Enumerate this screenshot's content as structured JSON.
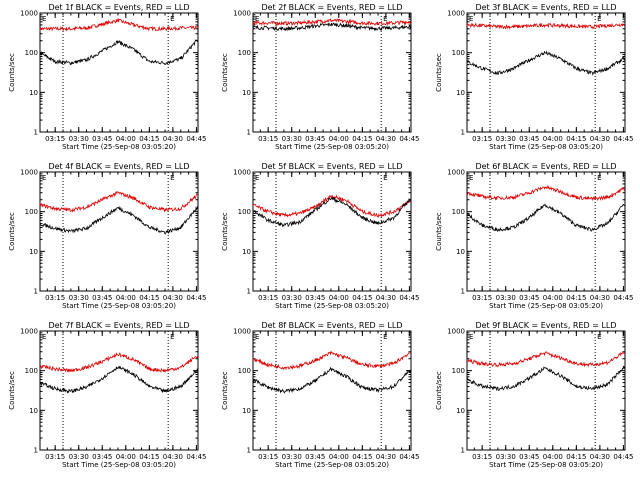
{
  "colors": {
    "events": "#000000",
    "lld": "#e00000",
    "axis": "#000000"
  },
  "shared": {
    "xlabel": "Start Time (25-Sep-08 03:05:20)",
    "ylabel": "Counts/sec",
    "x_ticks": [
      "03:15",
      "03:30",
      "03:45",
      "04:00",
      "04:15",
      "04:30",
      "04:45"
    ],
    "y_ticks": [
      "1",
      "10",
      "100",
      "1000"
    ],
    "yscale": "log",
    "ylim": [
      1,
      1000
    ],
    "xlim": [
      "03:05:20",
      "04:46:00"
    ],
    "vlines": [
      "03:20:00",
      "04:27:00"
    ],
    "marker_label": "E"
  },
  "chart_data": [
    {
      "type": "line",
      "title": "Det 1f BLACK = Events, RED = LLD",
      "x": [
        "03:05",
        "03:15",
        "03:25",
        "03:35",
        "03:45",
        "03:55",
        "04:05",
        "04:15",
        "04:25",
        "04:35",
        "04:45"
      ],
      "series": [
        {
          "values": [
            400,
            400,
            400,
            420,
            520,
            650,
            500,
            400,
            400,
            420,
            420
          ]
        },
        {
          "values": [
            100,
            60,
            55,
            65,
            110,
            190,
            120,
            60,
            55,
            70,
            200
          ]
        }
      ]
    },
    {
      "type": "line",
      "title": "Det 2f BLACK = Events, RED = LLD",
      "x": [
        "03:05",
        "03:15",
        "03:25",
        "03:35",
        "03:45",
        "03:55",
        "04:05",
        "04:15",
        "04:25",
        "04:35",
        "04:45"
      ],
      "series": [
        {
          "values": [
            560,
            560,
            550,
            560,
            600,
            650,
            610,
            560,
            550,
            560,
            600
          ]
        },
        {
          "values": [
            430,
            420,
            400,
            420,
            470,
            520,
            480,
            420,
            410,
            420,
            450
          ]
        }
      ]
    },
    {
      "type": "line",
      "title": "Det 3f BLACK = Events, RED = LLD",
      "x": [
        "03:05",
        "03:15",
        "03:25",
        "03:35",
        "03:45",
        "03:55",
        "04:05",
        "04:15",
        "04:25",
        "04:35",
        "04:45"
      ],
      "series": [
        {
          "values": [
            500,
            480,
            450,
            450,
            470,
            500,
            480,
            460,
            450,
            480,
            520
          ]
        },
        {
          "values": [
            60,
            40,
            30,
            40,
            65,
            100,
            70,
            40,
            30,
            40,
            70
          ]
        }
      ]
    },
    {
      "type": "line",
      "title": "Det 4f BLACK = Events, RED = LLD",
      "x": [
        "03:05",
        "03:15",
        "03:25",
        "03:35",
        "03:45",
        "03:55",
        "04:05",
        "04:15",
        "04:25",
        "04:35",
        "04:45"
      ],
      "series": [
        {
          "values": [
            150,
            120,
            110,
            130,
            200,
            300,
            220,
            130,
            110,
            120,
            250
          ]
        },
        {
          "values": [
            50,
            38,
            32,
            38,
            70,
            125,
            80,
            40,
            30,
            40,
            120
          ]
        }
      ]
    },
    {
      "type": "line",
      "title": "Det 5f BLACK = Events, RED = LLD",
      "x": [
        "03:05",
        "03:15",
        "03:25",
        "03:35",
        "03:45",
        "03:55",
        "04:05",
        "04:15",
        "04:25",
        "04:35",
        "04:45"
      ],
      "series": [
        {
          "values": [
            150,
            100,
            80,
            90,
            130,
            250,
            190,
            100,
            80,
            100,
            180
          ]
        },
        {
          "values": [
            110,
            60,
            45,
            55,
            110,
            220,
            150,
            70,
            50,
            70,
            200
          ]
        }
      ]
    },
    {
      "type": "line",
      "title": "Det 6f BLACK = Events, RED = LLD",
      "x": [
        "03:05",
        "03:15",
        "03:25",
        "03:35",
        "03:45",
        "03:55",
        "04:05",
        "04:15",
        "04:25",
        "04:35",
        "04:45"
      ],
      "series": [
        {
          "values": [
            300,
            240,
            220,
            230,
            300,
            420,
            320,
            230,
            210,
            230,
            380
          ]
        },
        {
          "values": [
            90,
            45,
            35,
            40,
            70,
            150,
            90,
            45,
            35,
            50,
            150
          ]
        }
      ]
    },
    {
      "type": "line",
      "title": "Det 7f BLACK = Events, RED = LLD",
      "x": [
        "03:05",
        "03:15",
        "03:25",
        "03:35",
        "03:45",
        "03:55",
        "04:05",
        "04:15",
        "04:25",
        "04:35",
        "04:45"
      ],
      "series": [
        {
          "values": [
            130,
            110,
            100,
            120,
            170,
            260,
            190,
            110,
            100,
            120,
            230
          ]
        },
        {
          "values": [
            50,
            35,
            30,
            38,
            65,
            125,
            80,
            40,
            30,
            40,
            100
          ]
        }
      ]
    },
    {
      "type": "line",
      "title": "Det 8f BLACK = Events, RED = LLD",
      "x": [
        "03:05",
        "03:15",
        "03:25",
        "03:35",
        "03:45",
        "03:55",
        "04:05",
        "04:15",
        "04:25",
        "04:35",
        "04:45"
      ],
      "series": [
        {
          "values": [
            200,
            140,
            120,
            130,
            180,
            280,
            210,
            140,
            130,
            150,
            280
          ]
        },
        {
          "values": [
            60,
            38,
            30,
            35,
            55,
            110,
            70,
            38,
            32,
            40,
            100
          ]
        }
      ]
    },
    {
      "type": "line",
      "title": "Det 9f BLACK = Events, RED = LLD",
      "x": [
        "03:05",
        "03:15",
        "03:25",
        "03:35",
        "03:45",
        "03:55",
        "04:05",
        "04:15",
        "04:25",
        "04:35",
        "04:45"
      ],
      "series": [
        {
          "values": [
            180,
            150,
            140,
            150,
            200,
            280,
            210,
            150,
            140,
            160,
            280
          ]
        },
        {
          "values": [
            60,
            40,
            35,
            40,
            65,
            115,
            75,
            40,
            35,
            45,
            120
          ]
        }
      ]
    }
  ]
}
